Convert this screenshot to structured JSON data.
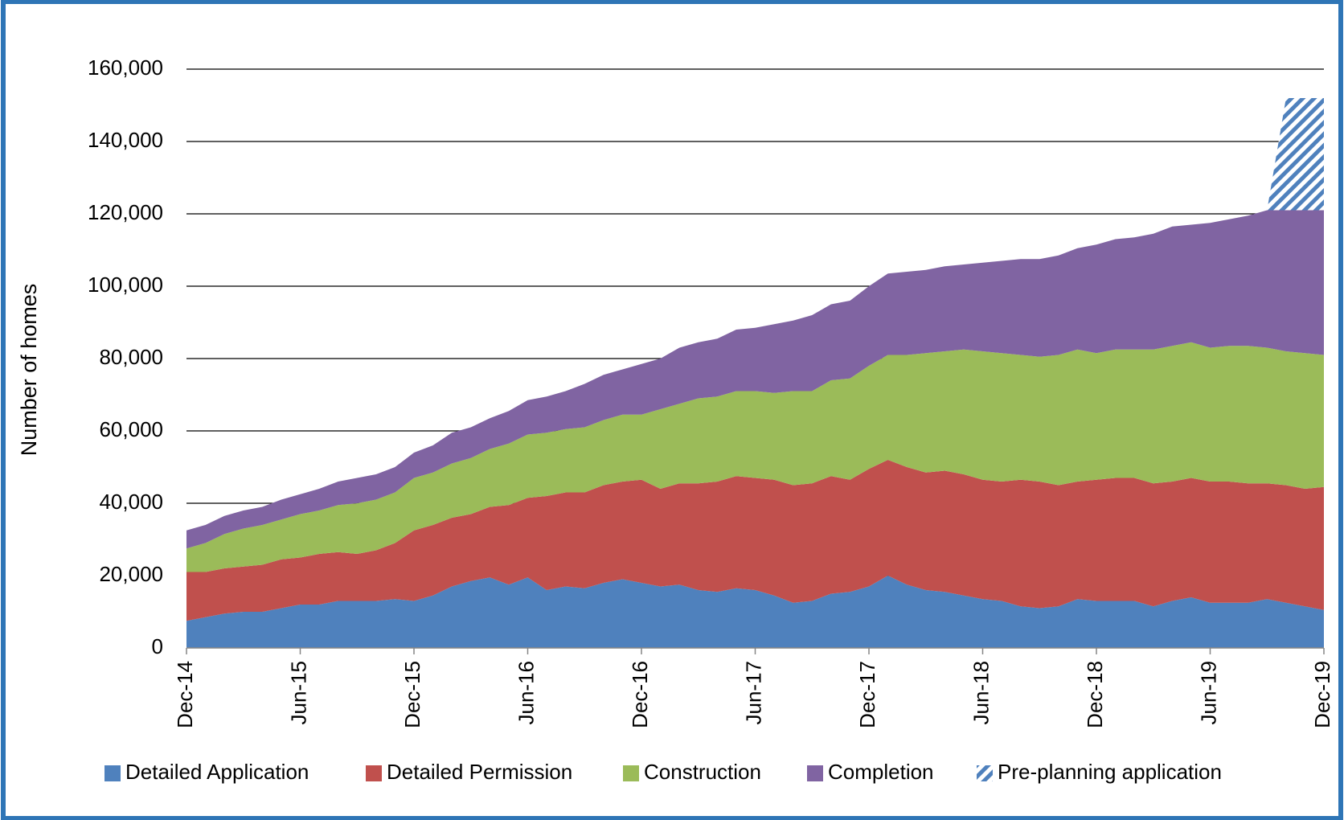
{
  "chart_data": {
    "type": "stacked_area",
    "y_label": "Number of homes",
    "categories": [
      "Dec-14",
      null,
      null,
      null,
      null,
      null,
      "Jun-15",
      null,
      null,
      null,
      null,
      null,
      "Dec-15",
      null,
      null,
      null,
      null,
      null,
      "Jun-16",
      null,
      null,
      null,
      null,
      null,
      "Dec-16",
      null,
      null,
      null,
      null,
      null,
      "Jun-17",
      null,
      null,
      null,
      null,
      null,
      "Dec-17",
      null,
      null,
      null,
      null,
      null,
      "Jun-18",
      null,
      null,
      null,
      null,
      null,
      "Dec-18",
      null,
      null,
      null,
      null,
      null,
      "Jun-19",
      null,
      null,
      null,
      null,
      null,
      "Dec-19"
    ],
    "series": [
      {
        "name": "Detailed Application",
        "color": "#4f81bd",
        "values": [
          7500,
          8500,
          9500,
          10000,
          10000,
          11000,
          12000,
          12000,
          13000,
          13000,
          13000,
          13500,
          13000,
          14500,
          17000,
          18500,
          19500,
          17500,
          19500,
          16000,
          17000,
          16500,
          18000,
          19000,
          18000,
          17000,
          17500,
          16000,
          15500,
          16500,
          16000,
          14500,
          12500,
          13000,
          15000,
          15500,
          17000,
          20000,
          17500,
          16000,
          15500,
          14500,
          13500,
          13000,
          11500,
          11000,
          11500,
          13500,
          13000,
          13000,
          13000,
          11500,
          13000,
          14000,
          12500,
          12500,
          12500,
          13500,
          12500,
          11500,
          10500
        ]
      },
      {
        "name": "Detailed Permission",
        "color": "#c0504d",
        "values": [
          13500,
          12500,
          12500,
          12500,
          13000,
          13500,
          13000,
          14000,
          13500,
          13000,
          14000,
          15500,
          19500,
          19500,
          19000,
          18500,
          19500,
          22000,
          22000,
          26000,
          26000,
          26500,
          27000,
          27000,
          28500,
          27000,
          28000,
          29500,
          30500,
          31000,
          31000,
          32000,
          32500,
          32500,
          32500,
          31000,
          32500,
          32000,
          32500,
          32500,
          33500,
          33500,
          33000,
          33000,
          35000,
          35000,
          33500,
          32500,
          33500,
          34000,
          34000,
          34000,
          33000,
          33000,
          33500,
          33500,
          33000,
          32000,
          32500,
          32500,
          34000
        ]
      },
      {
        "name": "Construction",
        "color": "#9bbb59",
        "values": [
          6500,
          8000,
          9500,
          10500,
          11000,
          11000,
          12000,
          12000,
          13000,
          14000,
          14000,
          14000,
          14500,
          14500,
          15000,
          15500,
          16000,
          17000,
          17500,
          17500,
          17500,
          18000,
          18000,
          18500,
          18000,
          22000,
          22000,
          23500,
          23500,
          23500,
          24000,
          24000,
          26000,
          25500,
          26500,
          28000,
          28500,
          29000,
          31000,
          33000,
          33000,
          34500,
          35500,
          35500,
          34500,
          34500,
          36000,
          36500,
          35000,
          35500,
          35500,
          37000,
          37500,
          37500,
          37000,
          37500,
          38000,
          37500,
          37000,
          37500,
          36500
        ]
      },
      {
        "name": "Completion",
        "color": "#8064a2",
        "values": [
          5000,
          5000,
          5000,
          5000,
          5000,
          5500,
          5500,
          6000,
          6500,
          7000,
          7000,
          7000,
          7000,
          7500,
          8500,
          8500,
          8500,
          9000,
          9500,
          10000,
          10500,
          12000,
          12500,
          12500,
          14000,
          14000,
          15500,
          15500,
          16000,
          17000,
          17500,
          19000,
          19500,
          21000,
          21000,
          21500,
          22000,
          22500,
          23000,
          23000,
          23500,
          23500,
          24500,
          25500,
          26500,
          27000,
          27500,
          28000,
          30000,
          30500,
          31000,
          32000,
          33000,
          32500,
          34500,
          35000,
          36000,
          38000,
          39000,
          39500,
          40000
        ]
      },
      {
        "name": "Pre-planning application",
        "color": "#4f81bd",
        "pattern": "hatch",
        "values": [
          null,
          null,
          null,
          null,
          null,
          null,
          null,
          null,
          null,
          null,
          null,
          null,
          null,
          null,
          null,
          null,
          null,
          null,
          null,
          null,
          null,
          null,
          null,
          null,
          null,
          null,
          null,
          null,
          null,
          null,
          null,
          null,
          null,
          null,
          null,
          null,
          null,
          null,
          null,
          null,
          null,
          null,
          null,
          null,
          null,
          null,
          null,
          null,
          null,
          null,
          null,
          null,
          null,
          null,
          null,
          null,
          null,
          0,
          31000,
          31000,
          31000
        ]
      }
    ],
    "ylim": [
      0,
      160000
    ],
    "yticks": [
      0,
      {
        "value": 20000,
        "label": "20,000"
      },
      {
        "value": 40000,
        "label": "40,000"
      },
      {
        "value": 60000,
        "label": "60,000"
      },
      {
        "value": 80000,
        "label": "80,000"
      },
      {
        "value": 100000,
        "label": "100,000"
      },
      {
        "value": 120000,
        "label": "120,000"
      },
      {
        "value": 140000,
        "label": "140,000"
      },
      {
        "value": 160000,
        "label": "160,000"
      }
    ],
    "grid": true,
    "legend": "bottom"
  }
}
